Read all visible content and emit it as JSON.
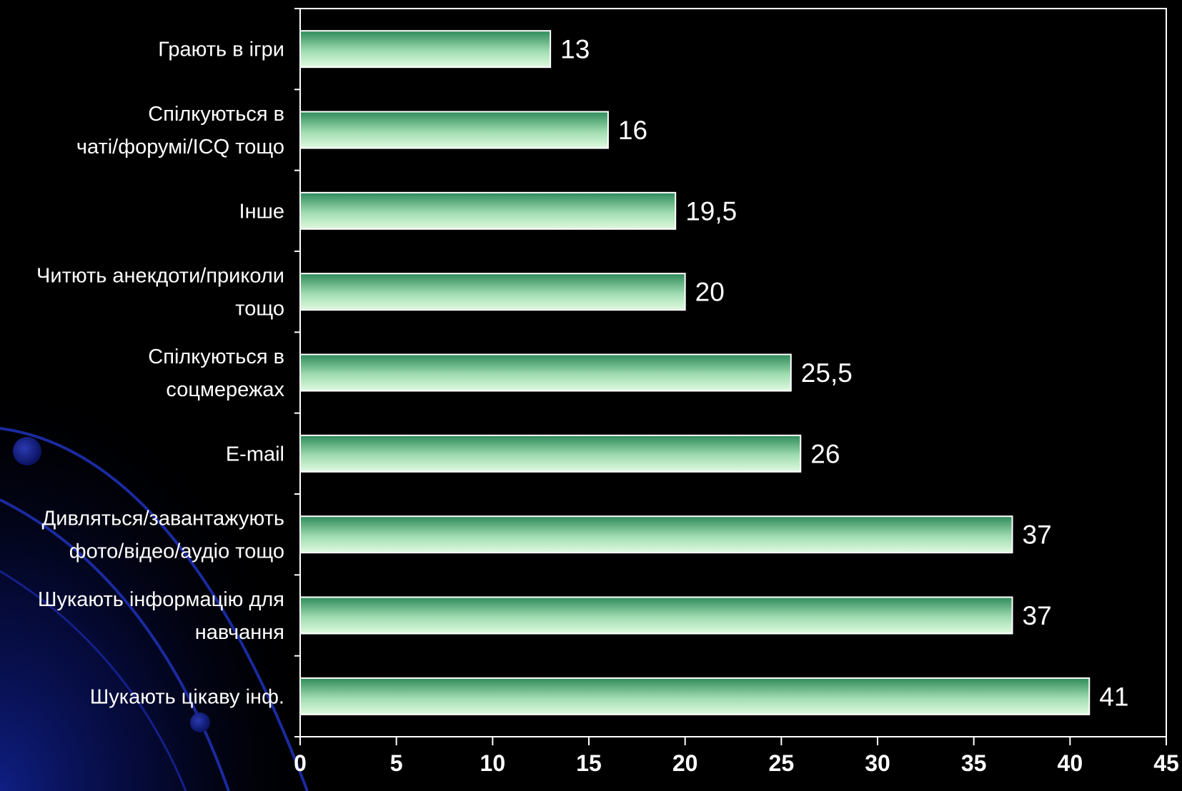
{
  "chart_data": {
    "type": "bar",
    "orientation": "horizontal",
    "title": "",
    "xlabel": "",
    "ylabel": "",
    "categories": [
      "Грають в ігри",
      "Спілкуються в чаті/форумі/ICQ тощо",
      "Інше",
      "Читють анекдоти/приколи тощо",
      "Спілкуються в соцмережах",
      "E-mail",
      "Дивляться/завантажують фото/відео/аудіо тощо",
      "Шукають інформацію для навчання",
      "Шукають цікаву інф."
    ],
    "category_lines": [
      [
        "Грають в ігри"
      ],
      [
        "Спілкуються в",
        "чаті/форумі/ICQ тощо"
      ],
      [
        "Інше"
      ],
      [
        "Читють анекдоти/приколи",
        "тощо"
      ],
      [
        "Спілкуються в",
        "соцмережах"
      ],
      [
        "E-mail"
      ],
      [
        "Дивляться/завантажують",
        "фото/відео/аудіо тощо"
      ],
      [
        "Шукають інформацію для",
        "навчання"
      ],
      [
        "Шукають цікаву інф."
      ]
    ],
    "values": [
      13,
      16,
      19.5,
      20,
      25.5,
      26,
      37,
      37,
      41
    ],
    "value_labels": [
      "13",
      "16",
      "19,5",
      "20",
      "25,5",
      "26",
      "37",
      "37",
      "41"
    ],
    "xlim": [
      0,
      45
    ],
    "xticks": [
      "0",
      "5",
      "10",
      "15",
      "20",
      "25",
      "30",
      "35",
      "40",
      "45"
    ],
    "grid": false,
    "legend": "none",
    "colors": {
      "background": "#000000",
      "bar_light": "#d8f7d8",
      "bar_dark": "#2e8a5a",
      "bar_edge": "#ffffff",
      "axis": "#ffffff",
      "text": "#ffffff",
      "decor": "#0a1a8a"
    }
  }
}
